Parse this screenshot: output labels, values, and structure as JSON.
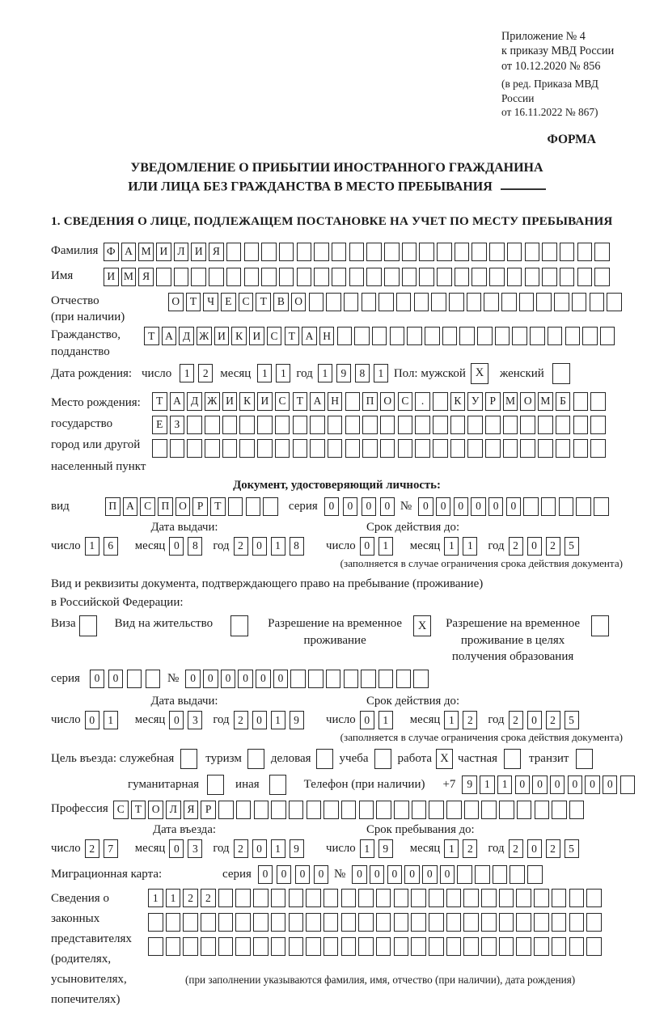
{
  "page": {
    "appendix": [
      "Приложение № 4",
      "к приказу МВД России",
      "от 10.12.2020 № 856"
    ],
    "appendix_edit": [
      "(в ред. Приказа МВД России",
      "от 16.11.2022 № 867)"
    ],
    "forma": "ФОРМА",
    "title1": "УВЕДОМЛЕНИЕ О ПРИБЫТИИ ИНОСТРАННОГО ГРАЖДАНИНА",
    "title2": "ИЛИ ЛИЦА БЕЗ ГРАЖДАНСТВА В МЕСТО ПРЕБЫВАНИЯ",
    "section1_heading": "1. СВЕДЕНИЯ О ЛИЦЕ, ПОДЛЕЖАЩЕМ ПОСТАНОВКЕ НА УЧЕТ ПО МЕСТУ ПРЕБЫВАНИЯ"
  },
  "labels": {
    "surname": "Фамилия",
    "name": "Имя",
    "patronymic": "Отчество",
    "patronymic_note": "(при наличии)",
    "citizenship1": "Гражданство,",
    "citizenship2": "подданство",
    "birth_date": "Дата рождения:",
    "day": "число",
    "month": "месяц",
    "year": "год",
    "sex_male": "Пол: мужской",
    "sex_female": "женский",
    "birth_place1": "Место рождения:",
    "birth_place2": "государство",
    "birth_place3": "город или другой",
    "birth_place4": "населенный пункт",
    "id_doc_heading": "Документ, удостоверяющий личность:",
    "doc_kind": "вид",
    "series": "серия",
    "number": "№",
    "issue_date": "Дата выдачи:",
    "valid_until": "Срок действия до:",
    "restriction_note": "(заполняется в случае ограничения срока действия документа)",
    "right_doc1": "Вид и реквизиты документа, подтверждающего право на пребывание (проживание)",
    "right_doc2": "в Российской Федерации:",
    "visa": "Виза",
    "residence_permit": "Вид на жительство",
    "temp_permit1": "Разрешение на временное",
    "temp_permit2": "проживание",
    "edu_permit1": "Разрешение на временное",
    "edu_permit2": "проживание в целях",
    "edu_permit3": "получения образования",
    "purpose": "Цель въезда: служебная",
    "tourism": "туризм",
    "business": "деловая",
    "study": "учеба",
    "work": "работа",
    "private": "частная",
    "transit": "транзит",
    "humanitarian": "гуманитарная",
    "other": "иная",
    "phone": "Телефон (при наличии)",
    "phone_prefix": "+7",
    "profession": "Профессия",
    "entry_date": "Дата въезда:",
    "stay_until": "Срок пребывания до:",
    "migration_card": "Миграционная карта:",
    "custody1": "Сведения о",
    "custody2": "законных",
    "custody3": "представителях",
    "custody4": "(родителях,",
    "custody5": "усыновителях,",
    "custody6": "попечителях)",
    "custody_note": "(при заполнении указываются фамилия, имя, отчество (при наличии), дата рождения)"
  },
  "grids": {
    "surname": {
      "chars": "ФАМИЛИЯ",
      "total": 29
    },
    "name": {
      "chars": "ИМЯ",
      "total": 29
    },
    "patronymic": {
      "chars": "ОТЧЕСТВО",
      "total": 26
    },
    "citizenship": {
      "chars": "ТАДЖИКИСТАН",
      "total": 27
    },
    "birth_day": "12",
    "birth_month": "11",
    "birth_year": "1981",
    "birth_place_row1": {
      "chars": "ТАДЖИКИСТАН ПОС. КУРМОМБ",
      "total": 26
    },
    "birth_place_row2": {
      "chars": "ЕЗ",
      "total": 26
    },
    "birth_place_row3": {
      "chars": "",
      "total": 26
    },
    "id_kind": {
      "chars": "ПАСПОРТ",
      "total": 10
    },
    "id_series": {
      "chars": "0000",
      "total": 4
    },
    "id_number": {
      "chars": "000000",
      "total": 11
    },
    "id_issue_day": "16",
    "id_issue_month": "08",
    "id_issue_year": "2018",
    "id_valid_day": "01",
    "id_valid_month": "11",
    "id_valid_year": "2025",
    "res_series": {
      "chars": "00",
      "total": 4
    },
    "res_number": {
      "chars": "000000",
      "total": 14
    },
    "res_issue_day": "01",
    "res_issue_month": "03",
    "res_issue_year": "2019",
    "res_valid_day": "01",
    "res_valid_month": "12",
    "res_valid_year": "2025",
    "phone": {
      "chars": "911000000",
      "total": 10
    },
    "profession": {
      "chars": "СТОЛЯР",
      "total": 27
    },
    "entry_day": "27",
    "entry_month": "03",
    "entry_year": "2019",
    "stay_day": "19",
    "stay_month": "12",
    "stay_year": "2025",
    "mig_series": {
      "chars": "0000",
      "total": 4
    },
    "mig_number": {
      "chars": "000000",
      "total": 11
    },
    "custody_row1": {
      "chars": "1122",
      "total": 26
    },
    "custody_row2": {
      "chars": "",
      "total": 26
    },
    "custody_row3": {
      "chars": "",
      "total": 26
    }
  },
  "checks": {
    "male": "X",
    "female": "",
    "visa": "",
    "residence_permit": "",
    "temp_permit": "X",
    "edu_permit": "",
    "official": "",
    "tourism": "",
    "business": "",
    "study": "",
    "work": "X",
    "private": "",
    "transit": "",
    "humanitarian": "",
    "other": ""
  },
  "colors": {
    "ink": "#1b1b1b",
    "cell_border": "#262626",
    "background": "#ffffff"
  }
}
